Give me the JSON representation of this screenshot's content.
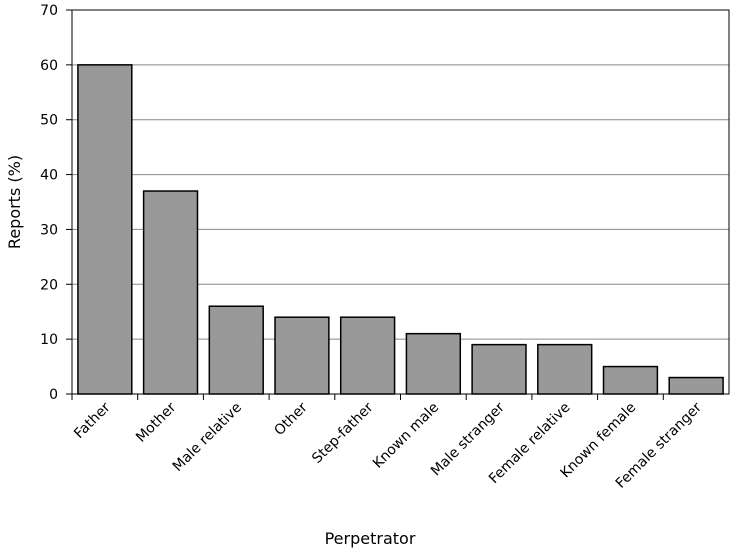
{
  "chart_data": {
    "type": "bar",
    "x_label": "Perpetrator",
    "y_label": "Reports (%)",
    "categories": [
      "Father",
      "Mother",
      "Male relative",
      "Other",
      "Step-father",
      "Known male",
      "Male stranger",
      "Female relative",
      "Known female",
      "Female stranger"
    ],
    "values": [
      60,
      37,
      16,
      14,
      14,
      11,
      9,
      9,
      5,
      3
    ],
    "color": "#999999",
    "ylim": [
      0,
      70
    ],
    "yticks": [
      0,
      10,
      20,
      30,
      40,
      50,
      60,
      70
    ],
    "grid": true
  }
}
